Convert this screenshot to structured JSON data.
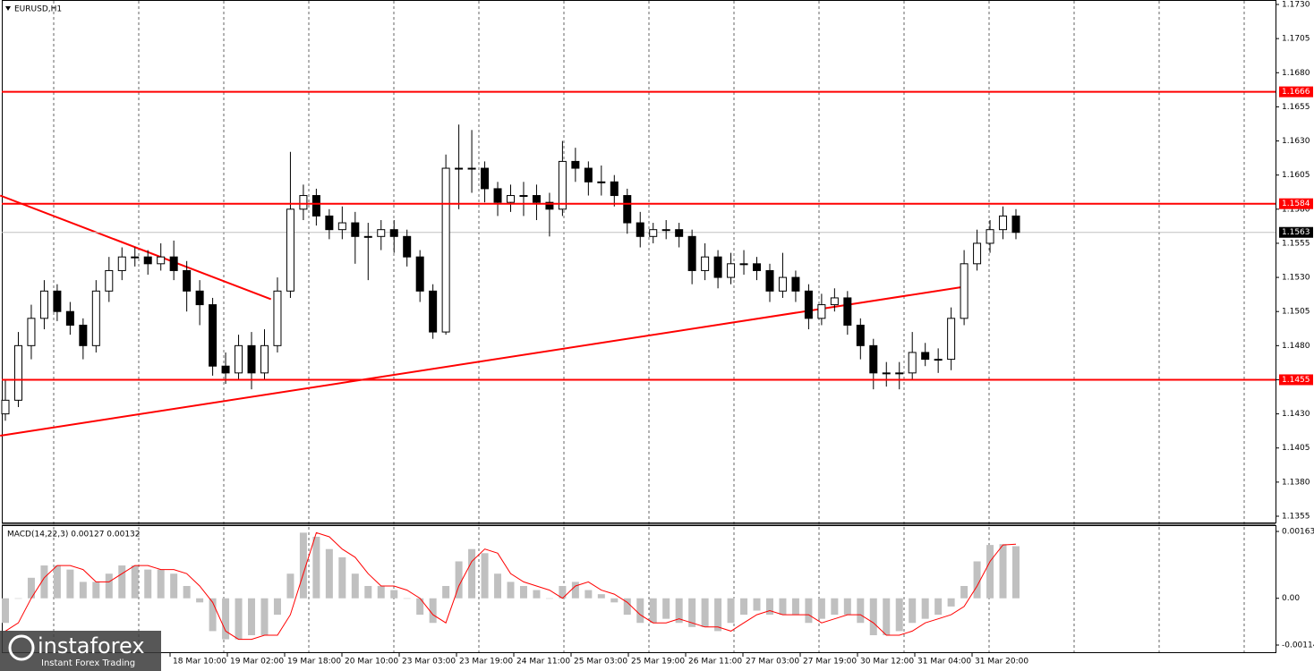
{
  "chart_data": [
    {
      "type": "candlestick",
      "title": "EURUSD,H1",
      "open": [
        1.143,
        1.144,
        1.148,
        1.15,
        1.152,
        1.1505,
        1.1495,
        1.148,
        1.152,
        1.1535,
        1.1545,
        1.1545,
        1.154,
        1.1545,
        1.1535,
        1.152,
        1.151,
        1.1465,
        1.146,
        1.148,
        1.146,
        1.148,
        1.152,
        1.158,
        1.159,
        1.1575,
        1.1565,
        1.157,
        1.156,
        1.156,
        1.1565,
        1.156,
        1.1545,
        1.152,
        1.149,
        1.161,
        1.161,
        1.161,
        1.1595,
        1.1585,
        1.159,
        1.159,
        1.1585,
        1.158,
        1.1615,
        1.161,
        1.16,
        1.16,
        1.159,
        1.157,
        1.156,
        1.1565,
        1.1565,
        1.156,
        1.1535,
        1.1545,
        1.153,
        1.154,
        1.154,
        1.1535,
        1.152,
        1.153,
        1.152,
        1.15,
        1.151,
        1.1515,
        1.1495,
        1.148,
        1.146,
        1.146,
        1.146,
        1.1475,
        1.147,
        1.147,
        1.15,
        1.154,
        1.1555,
        1.1565,
        1.1575
      ],
      "high": [
        1.1455,
        1.149,
        1.151,
        1.1528,
        1.1525,
        1.1512,
        1.15,
        1.1528,
        1.1545,
        1.1552,
        1.1552,
        1.155,
        1.1555,
        1.1557,
        1.1542,
        1.1528,
        1.1515,
        1.1475,
        1.1488,
        1.149,
        1.1492,
        1.153,
        1.1622,
        1.1598,
        1.1595,
        1.158,
        1.1582,
        1.1578,
        1.157,
        1.1572,
        1.1572,
        1.1565,
        1.155,
        1.1525,
        1.162,
        1.1642,
        1.1638,
        1.1615,
        1.16,
        1.1598,
        1.16,
        1.1598,
        1.1592,
        1.163,
        1.1625,
        1.1615,
        1.1612,
        1.1605,
        1.1595,
        1.1578,
        1.157,
        1.1572,
        1.157,
        1.1565,
        1.1555,
        1.155,
        1.1548,
        1.155,
        1.1545,
        1.154,
        1.1548,
        1.1535,
        1.1525,
        1.1518,
        1.1522,
        1.152,
        1.15,
        1.1485,
        1.1468,
        1.1468,
        1.149,
        1.1482,
        1.1478,
        1.1508,
        1.155,
        1.1565,
        1.1572,
        1.1582,
        1.158
      ],
      "low": [
        1.1425,
        1.1435,
        1.147,
        1.1492,
        1.1498,
        1.1488,
        1.147,
        1.1475,
        1.1512,
        1.1528,
        1.1538,
        1.1532,
        1.1535,
        1.1528,
        1.1505,
        1.1495,
        1.1458,
        1.1452,
        1.1455,
        1.1448,
        1.1455,
        1.1475,
        1.1515,
        1.1572,
        1.1568,
        1.1558,
        1.1558,
        1.154,
        1.1528,
        1.155,
        1.1548,
        1.1538,
        1.1512,
        1.1485,
        1.1488,
        1.158,
        1.1592,
        1.1585,
        1.1575,
        1.1578,
        1.1575,
        1.1572,
        1.156,
        1.1575,
        1.16,
        1.159,
        1.159,
        1.1582,
        1.1562,
        1.1552,
        1.1555,
        1.1558,
        1.1552,
        1.1525,
        1.1528,
        1.1522,
        1.1525,
        1.1532,
        1.1528,
        1.1512,
        1.1515,
        1.1512,
        1.1492,
        1.1495,
        1.1505,
        1.1488,
        1.147,
        1.1448,
        1.145,
        1.1448,
        1.1455,
        1.1465,
        1.146,
        1.1462,
        1.1495,
        1.1535,
        1.1548,
        1.1558,
        1.1558
      ],
      "close": [
        1.144,
        1.148,
        1.15,
        1.152,
        1.1505,
        1.1495,
        1.148,
        1.152,
        1.1535,
        1.1545,
        1.1545,
        1.154,
        1.1545,
        1.1535,
        1.152,
        1.151,
        1.1465,
        1.146,
        1.148,
        1.146,
        1.148,
        1.152,
        1.158,
        1.159,
        1.1575,
        1.1565,
        1.157,
        1.156,
        1.156,
        1.1565,
        1.156,
        1.1545,
        1.152,
        1.149,
        1.161,
        1.161,
        1.161,
        1.1595,
        1.1585,
        1.159,
        1.159,
        1.1585,
        1.158,
        1.1615,
        1.161,
        1.16,
        1.16,
        1.159,
        1.157,
        1.156,
        1.1565,
        1.1565,
        1.156,
        1.1535,
        1.1545,
        1.153,
        1.154,
        1.154,
        1.1535,
        1.152,
        1.153,
        1.152,
        1.15,
        1.151,
        1.1515,
        1.1495,
        1.148,
        1.146,
        1.146,
        1.146,
        1.1475,
        1.147,
        1.147,
        1.15,
        1.154,
        1.1555,
        1.1565,
        1.1575,
        1.1563
      ],
      "ylim": [
        1.1355,
        1.173
      ],
      "yticks": [
        {
          "value": 1.173,
          "label": "1.1730"
        },
        1.1705,
        {
          "value": 1.168,
          "label": "1.1680"
        },
        1.1655,
        {
          "value": 1.163,
          "label": "1.1630"
        },
        1.1605,
        {
          "value": 1.158,
          "label": "1.1580"
        },
        1.1555,
        {
          "value": 1.153,
          "label": "1.1530"
        },
        1.1505,
        {
          "value": 1.148,
          "label": "1.1480"
        },
        1.1455,
        {
          "value": 1.143,
          "label": "1.1430"
        },
        1.1405,
        {
          "value": 1.138,
          "label": "1.1380"
        },
        1.1355
      ],
      "levels": [
        1.1666,
        1.1584,
        1.1455
      ],
      "level_color": "#ff0000",
      "current": 1.1563,
      "trendlines": [
        [
          [
            -0.4,
            1.159
          ],
          [
            20.5,
            1.1514
          ]
        ],
        [
          [
            -0.4,
            1.1414
          ],
          [
            73.9,
            1.1523
          ]
        ]
      ],
      "xlabels": [
        "18 Mar 10:00",
        "19 Mar 02:00",
        "19 Mar 18:00",
        "20 Mar 10:00",
        "23 Mar 03:00",
        "23 Mar 19:00",
        "24 Mar 11:00",
        "25 Mar 03:00",
        "25 Mar 19:00",
        "26 Mar 11:00",
        "27 Mar 03:00",
        "27 Mar 19:00",
        "30 Mar 12:00",
        "31 Mar 04:00",
        "31 Mar 20:00"
      ]
    },
    {
      "type": "macd",
      "title": "MACD(14,22,3) 0.00127 0.00132",
      "values": [
        -0.0006,
        0.0,
        0.0005,
        0.0008,
        0.0008,
        0.0007,
        0.0004,
        0.0004,
        0.0006,
        0.0008,
        0.0008,
        0.0007,
        0.0007,
        0.0006,
        0.0003,
        -0.0001,
        -0.0008,
        -0.001,
        -0.001,
        -0.0009,
        -0.0009,
        -0.0004,
        0.0006,
        0.0016,
        0.0015,
        0.0012,
        0.001,
        0.0006,
        0.0003,
        0.0003,
        0.0002,
        0.0,
        -0.0004,
        -0.0006,
        0.0003,
        0.0009,
        0.0012,
        0.0011,
        0.0006,
        0.0004,
        0.0003,
        0.0002,
        0.0,
        0.0003,
        0.0004,
        0.0002,
        0.0001,
        -0.0001,
        -0.0004,
        -0.0006,
        -0.0006,
        -0.0005,
        -0.0006,
        -0.0007,
        -0.0007,
        -0.0008,
        -0.0006,
        -0.0004,
        -0.0003,
        -0.0004,
        -0.0004,
        -0.0004,
        -0.0006,
        -0.0005,
        -0.0004,
        -0.0004,
        -0.0006,
        -0.0009,
        -0.0009,
        -0.0008,
        -0.0006,
        -0.0005,
        -0.0004,
        -0.0002,
        0.0003,
        0.0009,
        0.0013,
        0.00132,
        0.00127
      ],
      "signal": [
        -0.0008,
        -0.0006,
        0.0,
        0.0005,
        0.0008,
        0.0008,
        0.0007,
        0.0004,
        0.0004,
        0.0006,
        0.0008,
        0.0008,
        0.0007,
        0.0007,
        0.0006,
        0.0003,
        -0.0001,
        -0.0008,
        -0.001,
        -0.001,
        -0.0009,
        -0.0009,
        -0.0004,
        0.0006,
        0.0016,
        0.0015,
        0.0012,
        0.001,
        0.0006,
        0.0003,
        0.0003,
        0.0002,
        0.0,
        -0.0004,
        -0.0006,
        0.0003,
        0.0009,
        0.0012,
        0.0011,
        0.0006,
        0.0004,
        0.0003,
        0.0002,
        0.0,
        0.0003,
        0.0004,
        0.0002,
        0.0001,
        -0.0001,
        -0.0004,
        -0.0006,
        -0.0006,
        -0.0005,
        -0.0006,
        -0.0007,
        -0.0007,
        -0.0008,
        -0.0006,
        -0.0004,
        -0.0003,
        -0.0004,
        -0.0004,
        -0.0004,
        -0.0006,
        -0.0005,
        -0.0004,
        -0.0004,
        -0.0006,
        -0.0009,
        -0.0009,
        -0.0008,
        -0.0006,
        -0.0005,
        -0.0004,
        -0.0002,
        0.0003,
        0.0009,
        0.0013,
        0.00132
      ],
      "color": "#c0c0c0",
      "signal_color": "#ff0000",
      "ylim": [
        -0.00114,
        0.00163
      ],
      "yticks": [
        0.00163,
        {
          "value": 0,
          "label": "0.00"
        },
        -0.00114
      ]
    }
  ],
  "logo": {
    "name": "instaforex",
    "tagline": "Instant Forex Trading"
  }
}
